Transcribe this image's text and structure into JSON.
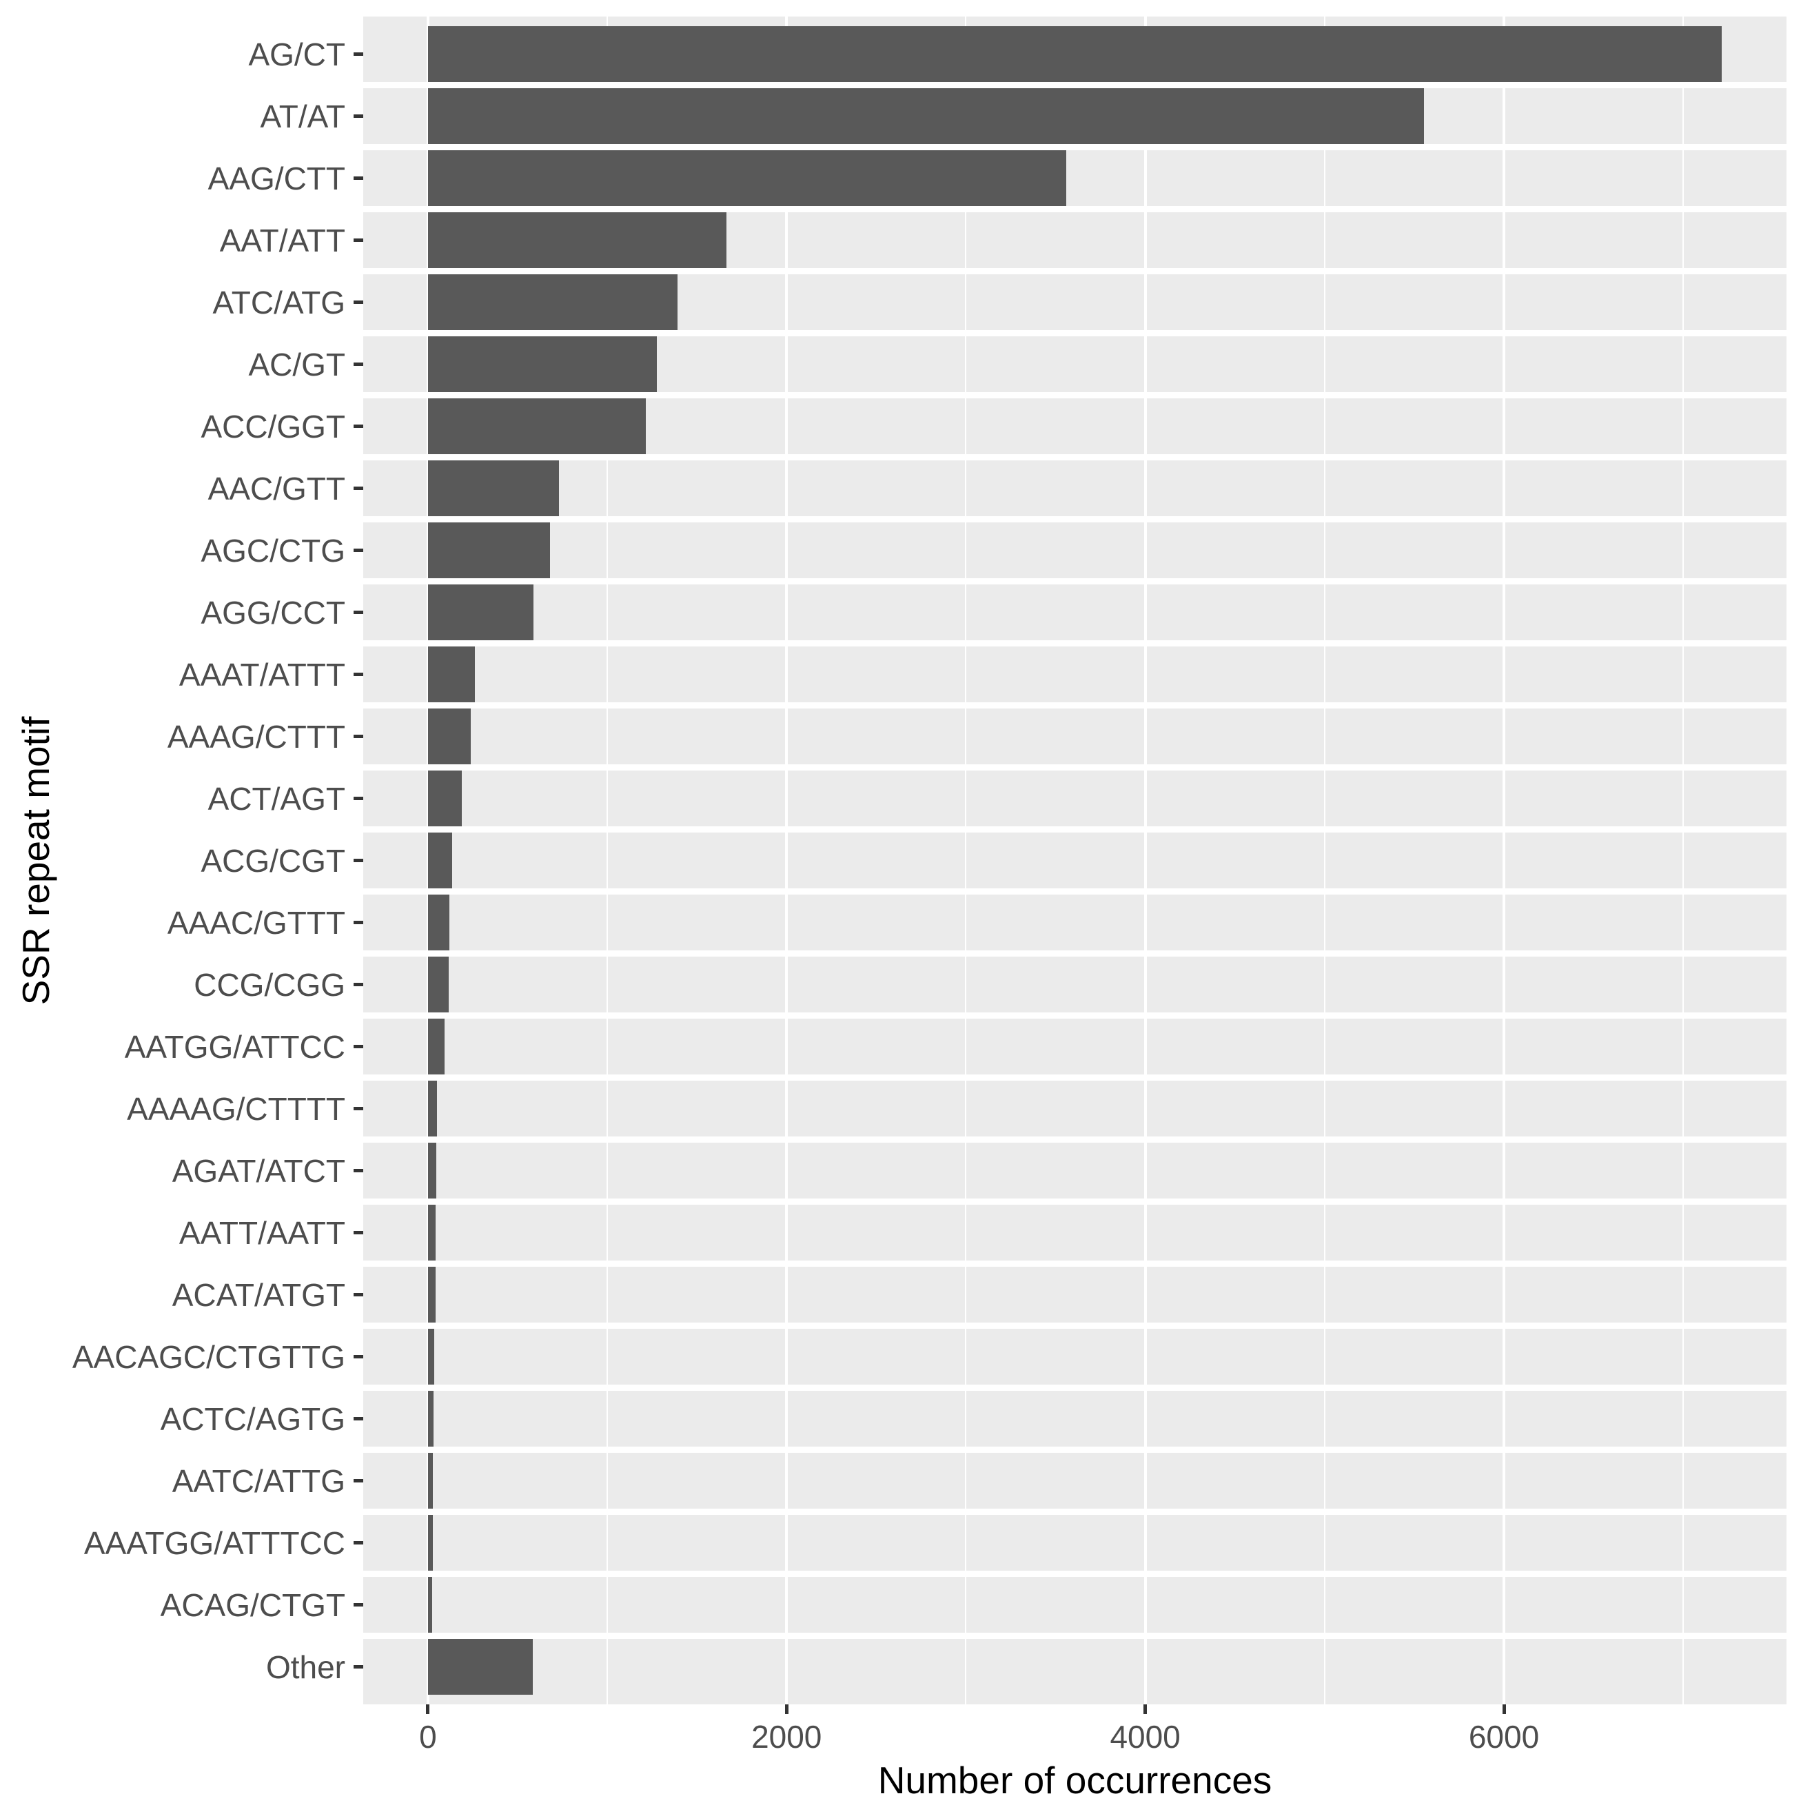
{
  "chart_data": {
    "type": "bar",
    "orientation": "horizontal",
    "title": "",
    "xlabel": "Number of occurrences",
    "ylabel": "SSR repeat motif",
    "categories": [
      "AG/CT",
      "AT/AT",
      "AAG/CTT",
      "AAT/ATT",
      "ATC/ATG",
      "AC/GT",
      "ACC/GGT",
      "AAC/GTT",
      "AGC/CTG",
      "AGG/CCT",
      "AAAT/ATTT",
      "AAAG/CTTT",
      "ACT/AGT",
      "ACG/CGT",
      "AAAC/GTTT",
      "CCG/CGG",
      "AATGG/ATTCC",
      "AAAAG/CTTTT",
      "AGAT/ATCT",
      "AATT/AATT",
      "ACAT/ATGT",
      "AACAGC/CTGTTG",
      "ACTC/AGTG",
      "AATC/ATTG",
      "AAATGG/ATTTCC",
      "ACAG/CTGT",
      "Other"
    ],
    "values": [
      7215,
      5555,
      3560,
      1665,
      1390,
      1275,
      1215,
      730,
      680,
      590,
      260,
      240,
      190,
      135,
      120,
      115,
      93,
      50,
      45,
      42,
      42,
      35,
      32,
      27,
      26,
      25,
      585
    ],
    "x_ticks": [
      0,
      2000,
      4000,
      6000
    ],
    "x_tick_labels": [
      "0",
      "2000",
      "4000",
      "6000"
    ],
    "x_minor_ticks": [
      1000,
      3000,
      5000,
      7000
    ],
    "xlim": [
      0,
      7215
    ],
    "grid": "on",
    "legend": "none",
    "colors": {
      "bar_fill": "#595959",
      "panel_background": "#EBEBEB",
      "gridline": "#ffffff",
      "tick_text": "#4d4d4d",
      "axis_title_text": "#000000",
      "tick_mark": "#333333"
    }
  }
}
